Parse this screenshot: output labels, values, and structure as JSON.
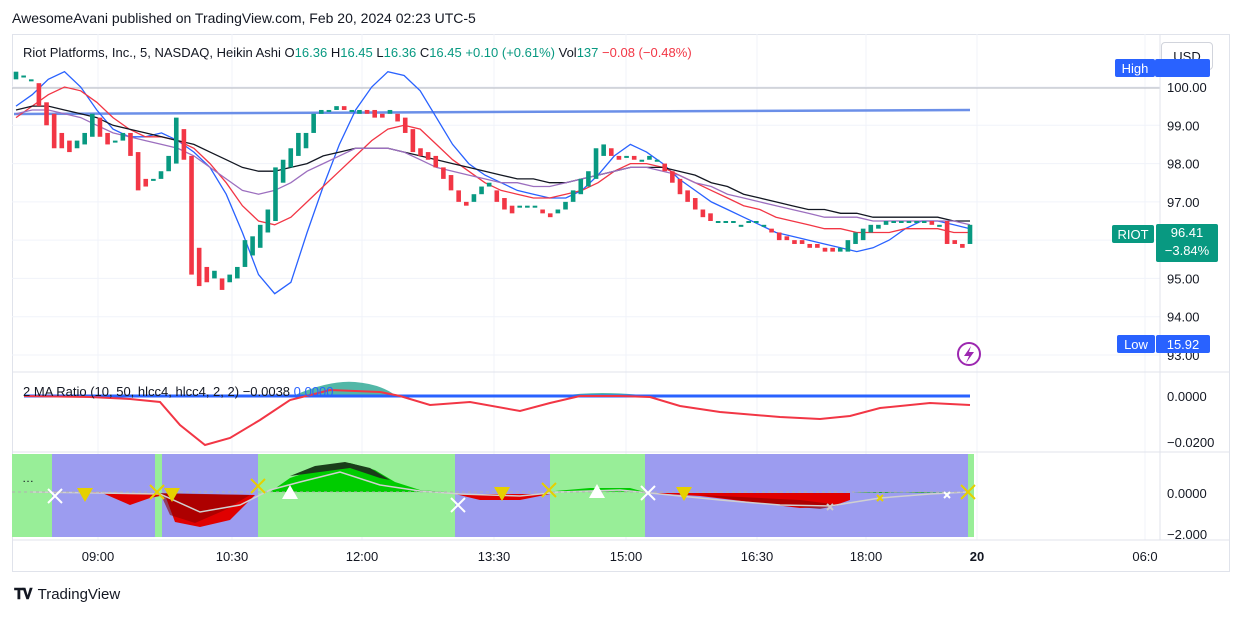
{
  "header": {
    "publisher": "AwesomeAvani published on TradingView.com, Feb 20, 2024 02:23 UTC-5"
  },
  "legend": {
    "symbol": "Riot Platforms, Inc., 5, NASDAQ, Heikin Ashi",
    "o_label": "O",
    "o_value": "16.36",
    "h_label": "H",
    "h_value": "16.45",
    "l_label": "L",
    "l_value": "16.36",
    "c_label": "C",
    "c_value": "16.45",
    "change": "+0.10 (+0.61%)",
    "vol_label": "Vol",
    "vol_value": "137",
    "vol_change": "−0.08 (−0.48%)"
  },
  "indicator_legend": {
    "name": "2 MA Ratio (10, 50, hlcc4, hlcc4, 2, 2)",
    "v1": "−0.0038",
    "v2": "0.0000"
  },
  "currency": "USD",
  "tags": {
    "high_label": "High",
    "low_label": "Low",
    "low_value": "15.92",
    "riot_label": "RIOT",
    "riot_price": "96.41",
    "riot_change": "−3.84%"
  },
  "price_axis": [
    "100.00",
    "99.00",
    "98.00",
    "97.00",
    "96.00",
    "95.00",
    "94.00",
    "93.00"
  ],
  "ind_axis": [
    "0.0000",
    "−0.0200"
  ],
  "osc_axis": [
    "0.0000",
    "−2.000"
  ],
  "time_axis": [
    "09:00",
    "10:30",
    "12:00",
    "13:30",
    "15:00",
    "16:30",
    "18:00",
    "20",
    "06:0"
  ],
  "footer": {
    "brand": "TradingView"
  },
  "colors": {
    "up": "#089981",
    "down": "#f23645",
    "blue": "#2962ff",
    "purple_zone": "#9c9cf0",
    "green_zone": "#98ee98"
  },
  "chart_data": {
    "type": "candlestick",
    "title": "Riot Platforms, Inc., 5, NASDAQ, Heikin Ashi",
    "ylim": [
      93.0,
      100.5
    ],
    "candles": [
      {
        "o": 100.2,
        "c": 100.4
      },
      {
        "o": 100.3,
        "c": 100.3
      },
      {
        "o": 100.2,
        "c": 100.2
      },
      {
        "o": 100.1,
        "c": 99.5
      },
      {
        "o": 99.6,
        "c": 99.0
      },
      {
        "o": 99.3,
        "c": 98.4
      },
      {
        "o": 98.8,
        "c": 98.4
      },
      {
        "o": 98.6,
        "c": 98.3
      },
      {
        "o": 98.4,
        "c": 98.6
      },
      {
        "o": 98.5,
        "c": 98.8
      },
      {
        "o": 98.7,
        "c": 99.3
      },
      {
        "o": 99.2,
        "c": 98.7
      },
      {
        "o": 98.8,
        "c": 98.5
      },
      {
        "o": 98.6,
        "c": 98.6
      },
      {
        "o": 98.6,
        "c": 98.8
      },
      {
        "o": 98.8,
        "c": 98.2
      },
      {
        "o": 98.3,
        "c": 97.3
      },
      {
        "o": 97.6,
        "c": 97.4
      },
      {
        "o": 97.6,
        "c": 97.6
      },
      {
        "o": 97.6,
        "c": 97.8
      },
      {
        "o": 97.8,
        "c": 98.2
      },
      {
        "o": 98.0,
        "c": 99.2
      },
      {
        "o": 98.9,
        "c": 98.1
      },
      {
        "o": 98.2,
        "c": 95.1
      },
      {
        "o": 95.8,
        "c": 94.8
      },
      {
        "o": 95.3,
        "c": 94.9
      },
      {
        "o": 95.0,
        "c": 95.2
      },
      {
        "o": 95.0,
        "c": 94.7
      },
      {
        "o": 94.9,
        "c": 95.1
      },
      {
        "o": 95.0,
        "c": 95.3
      },
      {
        "o": 95.3,
        "c": 96.0
      },
      {
        "o": 95.6,
        "c": 96.1
      },
      {
        "o": 95.8,
        "c": 96.4
      },
      {
        "o": 96.2,
        "c": 96.8
      },
      {
        "o": 96.5,
        "c": 97.9
      },
      {
        "o": 97.5,
        "c": 98.1
      },
      {
        "o": 97.9,
        "c": 98.4
      },
      {
        "o": 98.2,
        "c": 98.8
      },
      {
        "o": 98.4,
        "c": 98.8
      },
      {
        "o": 98.8,
        "c": 99.3
      },
      {
        "o": 99.3,
        "c": 99.4
      },
      {
        "o": 99.4,
        "c": 99.4
      },
      {
        "o": 99.4,
        "c": 99.5
      },
      {
        "o": 99.5,
        "c": 99.4
      },
      {
        "o": 99.4,
        "c": 99.4
      },
      {
        "o": 99.3,
        "c": 99.4
      },
      {
        "o": 99.4,
        "c": 99.3
      },
      {
        "o": 99.4,
        "c": 99.2
      },
      {
        "o": 99.3,
        "c": 99.2
      },
      {
        "o": 99.3,
        "c": 99.4
      },
      {
        "o": 99.3,
        "c": 99.1
      },
      {
        "o": 99.2,
        "c": 98.8
      },
      {
        "o": 98.9,
        "c": 98.3
      },
      {
        "o": 98.4,
        "c": 98.2
      },
      {
        "o": 98.3,
        "c": 98.1
      },
      {
        "o": 98.2,
        "c": 97.9
      },
      {
        "o": 97.9,
        "c": 97.6
      },
      {
        "o": 97.7,
        "c": 97.3
      },
      {
        "o": 97.3,
        "c": 97.0
      },
      {
        "o": 97.0,
        "c": 96.9
      },
      {
        "o": 97.0,
        "c": 97.2
      },
      {
        "o": 97.2,
        "c": 97.4
      },
      {
        "o": 97.4,
        "c": 97.5
      },
      {
        "o": 97.3,
        "c": 97.0
      },
      {
        "o": 97.1,
        "c": 96.8
      },
      {
        "o": 96.9,
        "c": 96.7
      },
      {
        "o": 96.9,
        "c": 96.9
      },
      {
        "o": 96.9,
        "c": 96.9
      },
      {
        "o": 96.9,
        "c": 96.9
      },
      {
        "o": 96.8,
        "c": 96.7
      },
      {
        "o": 96.7,
        "c": 96.6
      },
      {
        "o": 96.7,
        "c": 96.8
      },
      {
        "o": 96.8,
        "c": 97.0
      },
      {
        "o": 97.0,
        "c": 97.3
      },
      {
        "o": 97.2,
        "c": 97.6
      },
      {
        "o": 97.4,
        "c": 97.8
      },
      {
        "o": 97.6,
        "c": 98.4
      },
      {
        "o": 98.2,
        "c": 98.5
      },
      {
        "o": 98.4,
        "c": 98.2
      },
      {
        "o": 98.2,
        "c": 98.1
      },
      {
        "o": 98.2,
        "c": 98.2
      },
      {
        "o": 98.2,
        "c": 98.1
      },
      {
        "o": 98.1,
        "c": 98.1
      },
      {
        "o": 98.1,
        "c": 98.2
      },
      {
        "o": 98.1,
        "c": 98.1
      },
      {
        "o": 98.0,
        "c": 97.8
      },
      {
        "o": 97.8,
        "c": 97.5
      },
      {
        "o": 97.6,
        "c": 97.2
      },
      {
        "o": 97.3,
        "c": 97.0
      },
      {
        "o": 97.1,
        "c": 96.8
      },
      {
        "o": 96.8,
        "c": 96.6
      },
      {
        "o": 96.7,
        "c": 96.5
      },
      {
        "o": 96.5,
        "c": 96.5
      },
      {
        "o": 96.5,
        "c": 96.5
      },
      {
        "o": 96.5,
        "c": 96.5
      },
      {
        "o": 96.4,
        "c": 96.4
      },
      {
        "o": 96.5,
        "c": 96.5
      },
      {
        "o": 96.5,
        "c": 96.5
      },
      {
        "o": 96.4,
        "c": 96.4
      },
      {
        "o": 96.3,
        "c": 96.2
      },
      {
        "o": 96.2,
        "c": 96.0
      },
      {
        "o": 96.1,
        "c": 96.0
      },
      {
        "o": 96.0,
        "c": 95.9
      },
      {
        "o": 96.0,
        "c": 95.9
      },
      {
        "o": 95.9,
        "c": 95.8
      },
      {
        "o": 95.9,
        "c": 95.8
      },
      {
        "o": 95.8,
        "c": 95.7
      },
      {
        "o": 95.8,
        "c": 95.7
      },
      {
        "o": 95.7,
        "c": 95.8
      },
      {
        "o": 95.7,
        "c": 96.0
      },
      {
        "o": 95.9,
        "c": 96.2
      },
      {
        "o": 96.0,
        "c": 96.3
      },
      {
        "o": 96.2,
        "c": 96.4
      },
      {
        "o": 96.3,
        "c": 96.4
      },
      {
        "o": 96.4,
        "c": 96.5
      },
      {
        "o": 96.5,
        "c": 96.5
      },
      {
        "o": 96.5,
        "c": 96.5
      },
      {
        "o": 96.5,
        "c": 96.5
      },
      {
        "o": 96.5,
        "c": 96.5
      },
      {
        "o": 96.5,
        "c": 96.5
      },
      {
        "o": 96.5,
        "c": 96.4
      },
      {
        "o": 96.4,
        "c": 96.4
      },
      {
        "o": 96.5,
        "c": 95.9
      },
      {
        "o": 96.0,
        "c": 95.9
      },
      {
        "o": 95.9,
        "c": 95.8
      },
      {
        "o": 95.9,
        "c": 96.4
      }
    ],
    "series": [
      {
        "color": "#2962ff",
        "values": [
          99.5,
          99.8,
          100.2,
          100.4,
          100.0,
          99.4,
          98.9,
          98.7,
          98.7,
          98.8,
          98.6,
          98.3,
          97.9,
          97.2,
          96.2,
          95.1,
          94.6,
          94.9,
          96.2,
          97.4,
          98.5,
          99.4,
          100.0,
          100.4,
          100.3,
          99.9,
          99.2,
          98.5,
          98.0,
          97.7,
          97.5,
          97.3,
          97.2,
          97.1,
          97.1,
          97.3,
          97.7,
          98.2,
          98.5,
          98.3,
          98.0,
          97.6,
          97.3,
          97.0,
          96.8,
          96.6,
          96.4,
          96.2,
          96.1,
          96.0,
          95.9,
          95.8,
          95.7,
          95.8,
          96.0,
          96.3,
          96.5,
          96.5,
          96.4,
          96.3
        ]
      },
      {
        "color": "#f23645",
        "values": [
          99.2,
          99.5,
          99.8,
          100.0,
          99.9,
          99.6,
          99.2,
          98.9,
          98.7,
          98.7,
          98.6,
          98.4,
          98.0,
          97.5,
          96.9,
          96.5,
          96.4,
          96.6,
          97.0,
          97.4,
          97.8,
          98.2,
          98.6,
          98.9,
          99.0,
          98.9,
          98.5,
          98.1,
          97.8,
          97.5,
          97.3,
          97.2,
          97.1,
          97.1,
          97.2,
          97.3,
          97.5,
          97.8,
          98.0,
          98.0,
          97.9,
          97.7,
          97.5,
          97.3,
          97.1,
          96.9,
          96.8,
          96.6,
          96.5,
          96.4,
          96.3,
          96.3,
          96.2,
          96.2,
          96.2,
          96.3,
          96.3,
          96.3,
          96.2,
          96.2
        ]
      },
      {
        "color": "#131722",
        "values": [
          99.4,
          99.5,
          99.5,
          99.4,
          99.3,
          99.2,
          99.0,
          98.9,
          98.8,
          98.7,
          98.6,
          98.5,
          98.3,
          98.1,
          97.9,
          97.8,
          97.8,
          97.9,
          98.0,
          98.2,
          98.3,
          98.4,
          98.4,
          98.4,
          98.3,
          98.2,
          98.1,
          98.0,
          97.9,
          97.8,
          97.7,
          97.6,
          97.6,
          97.5,
          97.5,
          97.6,
          97.7,
          97.8,
          97.9,
          97.9,
          97.9,
          97.8,
          97.7,
          97.5,
          97.4,
          97.2,
          97.1,
          97.0,
          96.9,
          96.8,
          96.8,
          96.7,
          96.7,
          96.6,
          96.6,
          96.6,
          96.6,
          96.6,
          96.5,
          96.5
        ]
      },
      {
        "color": "#9c6fbf",
        "values": [
          99.3,
          99.4,
          99.4,
          99.3,
          99.2,
          99.0,
          98.8,
          98.7,
          98.6,
          98.5,
          98.4,
          98.2,
          97.9,
          97.6,
          97.3,
          97.2,
          97.3,
          97.5,
          97.8,
          98.0,
          98.2,
          98.4,
          98.4,
          98.4,
          98.3,
          98.1,
          97.9,
          97.8,
          97.7,
          97.6,
          97.5,
          97.5,
          97.4,
          97.4,
          97.5,
          97.6,
          97.7,
          97.8,
          97.9,
          97.9,
          97.8,
          97.7,
          97.5,
          97.4,
          97.2,
          97.1,
          97.0,
          96.9,
          96.8,
          96.7,
          96.6,
          96.6,
          96.6,
          96.5,
          96.5,
          96.5,
          96.5,
          96.5,
          96.5,
          96.4
        ]
      }
    ],
    "hline": 99.4
  }
}
